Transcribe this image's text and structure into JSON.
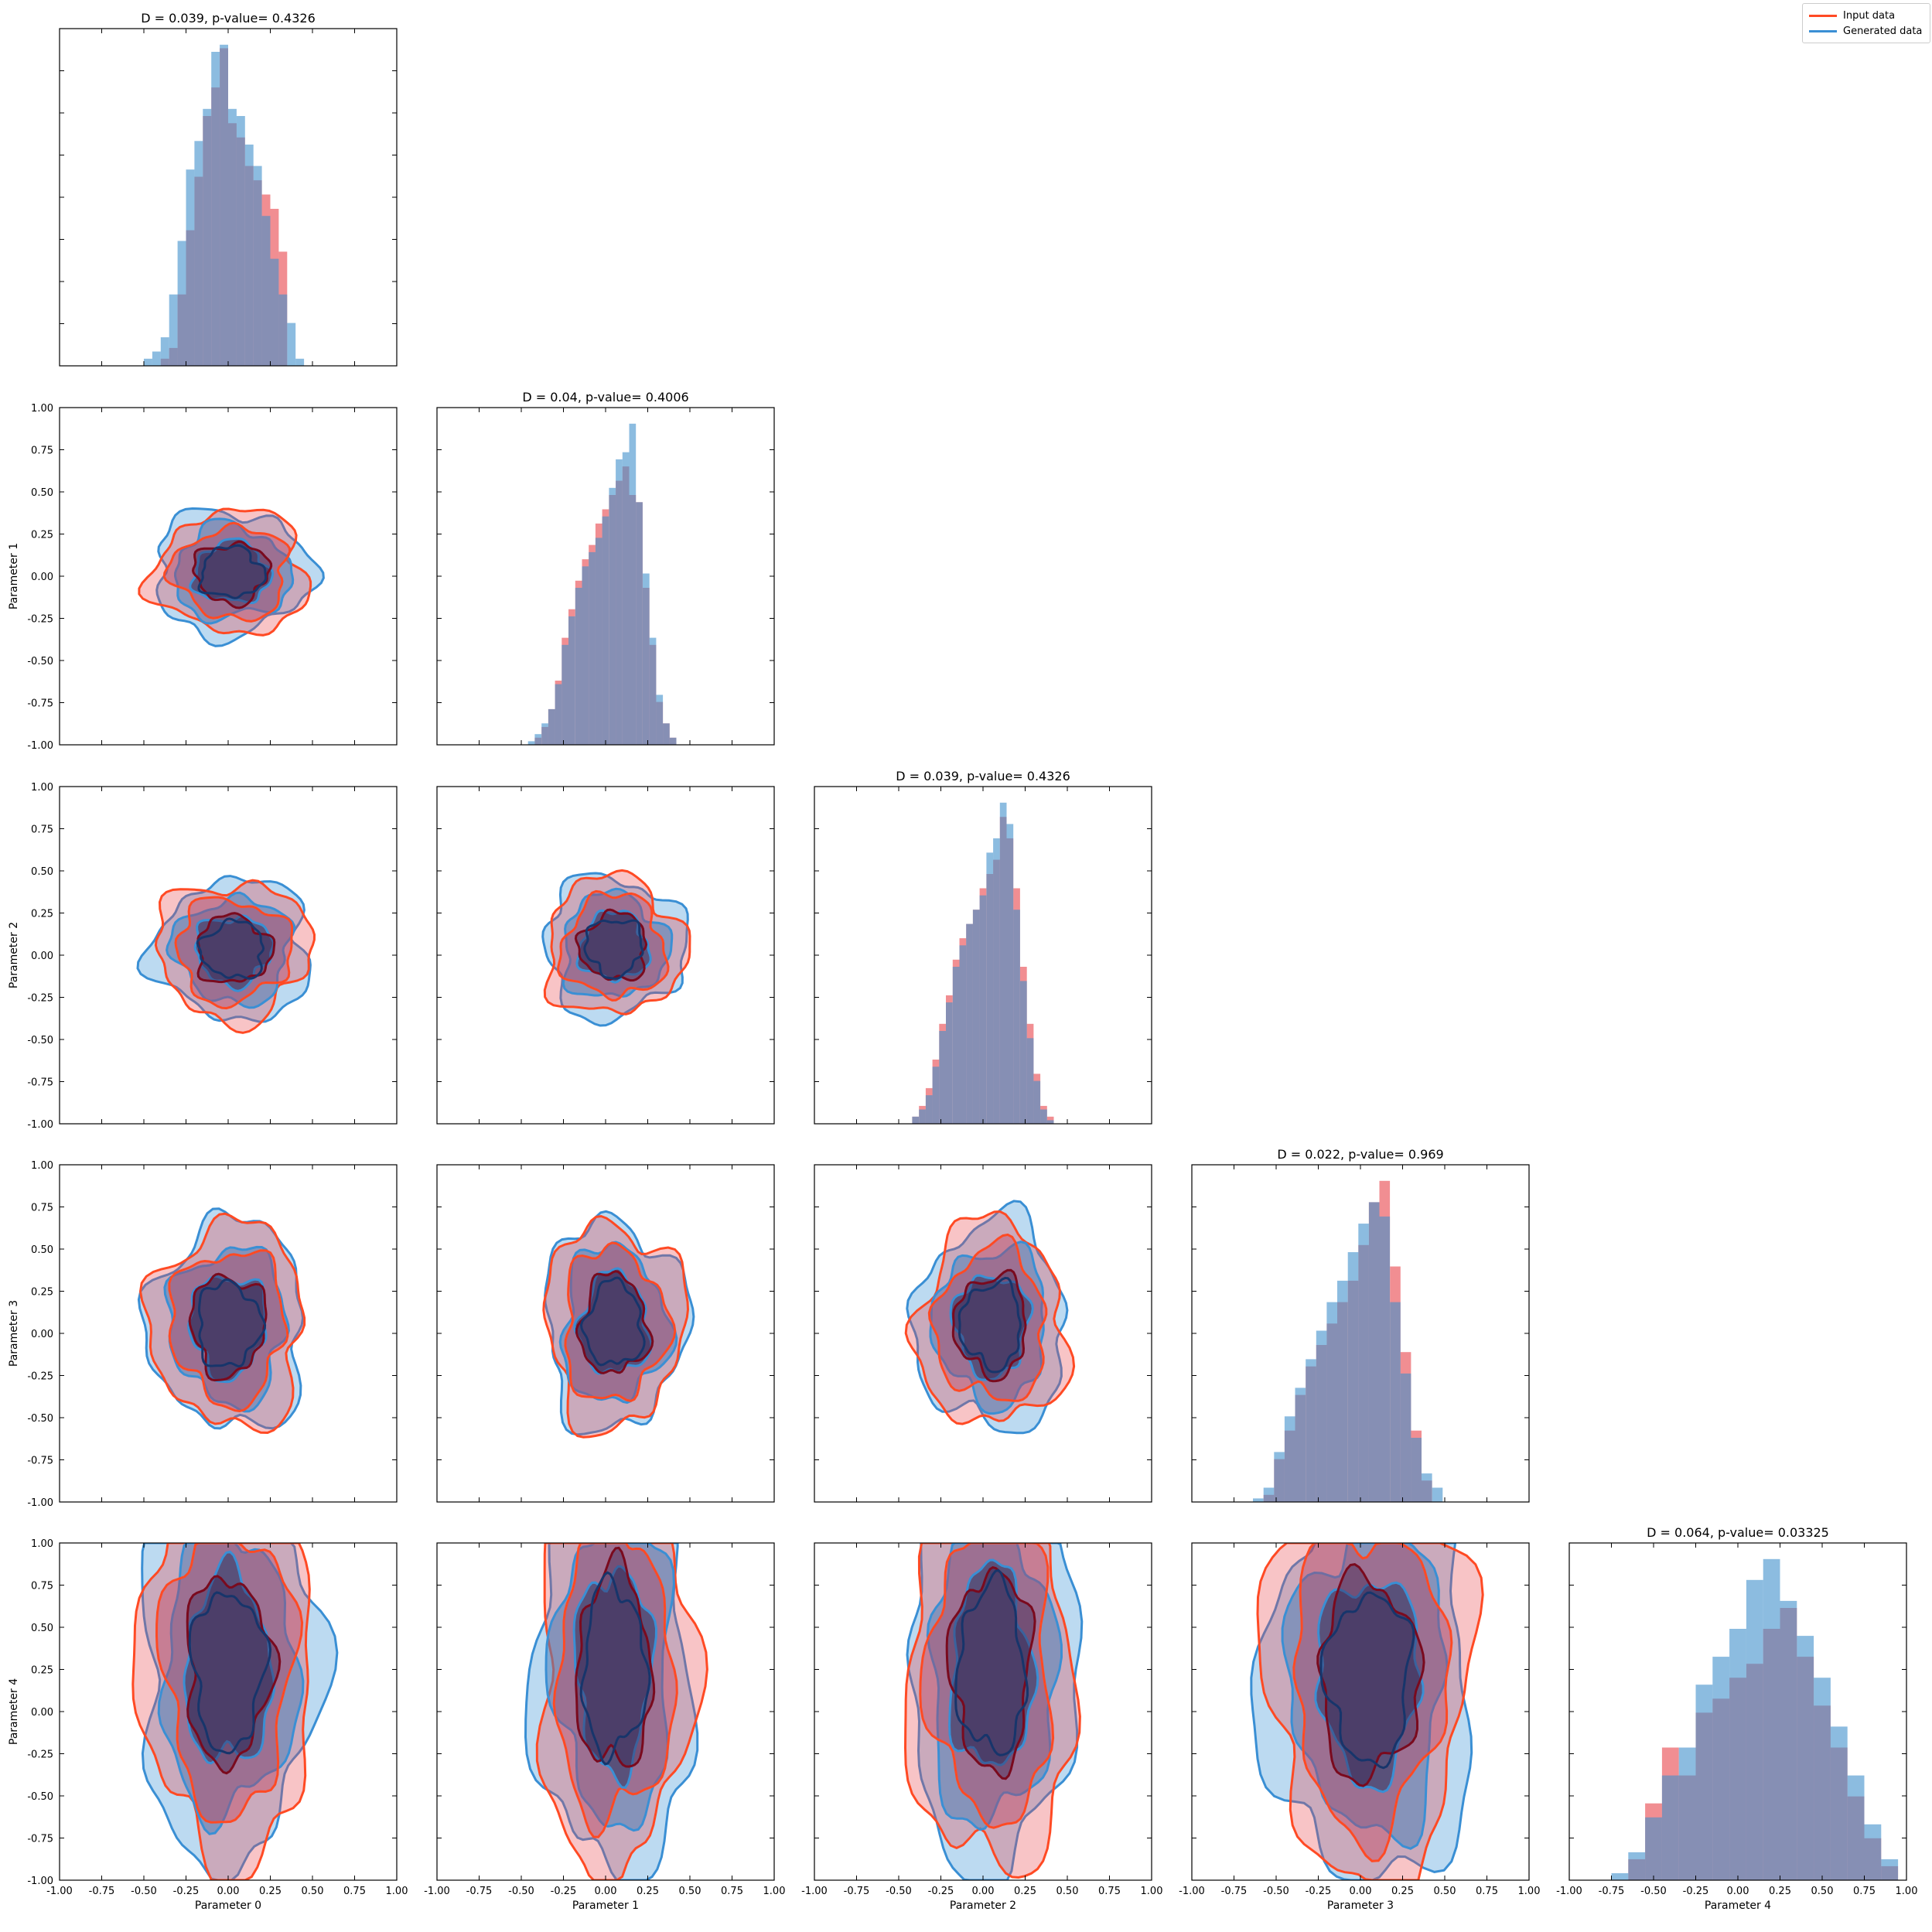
{
  "legend": {
    "input_label": "Input data",
    "generated_label": "Generated data",
    "placement": "top-right"
  },
  "colors": {
    "input": "#e8424a",
    "generated": "#3f8fcc",
    "input_line": "#ff4a24",
    "generated_line": "#3a8fd4",
    "inner_input": "#7a0a1e",
    "inner_generated": "#17356b",
    "overlap": "#7b6b92"
  },
  "chart_data": {
    "type": "corner",
    "parameters": [
      "Parameter 0",
      "Parameter 1",
      "Parameter 2",
      "Parameter 3",
      "Parameter 4"
    ],
    "axis_range": [
      -1.0,
      1.0
    ],
    "ticks": [
      "-1.00",
      "-0.75",
      "-0.50",
      "-0.25",
      "0.00",
      "0.25",
      "0.50",
      "0.75",
      "1.00"
    ],
    "diagonal_titles": [
      "D = 0.039, p-value= 0.4326",
      "D = 0.04, p-value= 0.4006",
      "D = 0.039, p-value= 0.4326",
      "D = 0.022, p-value= 0.969",
      "D = 0.064, p-value= 0.03325"
    ],
    "histograms": [
      {
        "x_start": -0.5,
        "bin_width": 0.05,
        "input": [
          0,
          0,
          2,
          5,
          20,
          38,
          53,
          70,
          78,
          89,
          68,
          64,
          56,
          52,
          48,
          44,
          32,
          0,
          0,
          0
        ],
        "generated": [
          2,
          4,
          8,
          20,
          35,
          55,
          63,
          72,
          88,
          90,
          72,
          70,
          62,
          56,
          42,
          30,
          20,
          12,
          2,
          0
        ]
      },
      {
        "x_start": -0.5,
        "bin_width": 0.04,
        "input": [
          0,
          0,
          2,
          5,
          10,
          18,
          30,
          38,
          46,
          52,
          56,
          62,
          66,
          70,
          74,
          78,
          70,
          68,
          44,
          28,
          12,
          6,
          2,
          0,
          0
        ],
        "generated": [
          0,
          1,
          3,
          6,
          10,
          17,
          28,
          36,
          44,
          50,
          54,
          58,
          64,
          72,
          80,
          82,
          90,
          68,
          48,
          30,
          14,
          6,
          2,
          0,
          0
        ]
      },
      {
        "x_start": -0.5,
        "bin_width": 0.04,
        "input": [
          0,
          0,
          2,
          5,
          10,
          18,
          28,
          36,
          46,
          52,
          56,
          60,
          66,
          70,
          74,
          86,
          80,
          66,
          44,
          28,
          14,
          5,
          2,
          0,
          0
        ],
        "generated": [
          0,
          0,
          2,
          4,
          8,
          16,
          26,
          34,
          44,
          50,
          56,
          60,
          64,
          76,
          80,
          90,
          84,
          60,
          40,
          24,
          12,
          4,
          1,
          0,
          0
        ]
      },
      {
        "x_start": -0.6,
        "bin_width": 0.05,
        "input": [
          0,
          0,
          2,
          12,
          20,
          30,
          38,
          44,
          50,
          56,
          62,
          72,
          84,
          90,
          66,
          42,
          20,
          6,
          0,
          0,
          0,
          0,
          0,
          0,
          0,
          0
        ],
        "generated": [
          0,
          1,
          4,
          14,
          24,
          32,
          40,
          48,
          56,
          62,
          70,
          78,
          84,
          80,
          56,
          36,
          18,
          8,
          4,
          0,
          0,
          0,
          0,
          0,
          0,
          0
        ],
        "x_rescale": [
          1.25,
          0.05
        ]
      },
      {
        "x_start": -0.75,
        "bin_width": 0.1,
        "input": [
          0,
          6,
          22,
          38,
          30,
          48,
          52,
          58,
          62,
          72,
          78,
          64,
          50,
          38,
          24,
          12,
          4,
          0
        ],
        "generated": [
          2,
          8,
          18,
          30,
          38,
          56,
          64,
          72,
          86,
          92,
          80,
          70,
          58,
          44,
          30,
          16,
          6,
          0
        ]
      }
    ],
    "pairs": [
      {
        "row": 1,
        "col": 0,
        "cx": 0.02,
        "cy": 0.02,
        "sx": 0.3,
        "sy": 0.24
      },
      {
        "row": 2,
        "col": 0,
        "cx": 0.03,
        "cy": 0.03,
        "sx": 0.3,
        "sy": 0.27
      },
      {
        "row": 2,
        "col": 1,
        "cx": 0.05,
        "cy": 0.05,
        "sx": 0.27,
        "sy": 0.27
      },
      {
        "row": 3,
        "col": 0,
        "cx": 0.0,
        "cy": 0.05,
        "sx": 0.3,
        "sy": 0.4
      },
      {
        "row": 3,
        "col": 1,
        "cx": 0.05,
        "cy": 0.05,
        "sx": 0.27,
        "sy": 0.4
      },
      {
        "row": 3,
        "col": 2,
        "cx": 0.05,
        "cy": 0.05,
        "sx": 0.29,
        "sy": 0.4
      },
      {
        "row": 4,
        "col": 0,
        "cx": 0.0,
        "cy": 0.25,
        "sx": 0.34,
        "sy": 0.75
      },
      {
        "row": 4,
        "col": 1,
        "cx": 0.05,
        "cy": 0.25,
        "sx": 0.3,
        "sy": 0.8
      },
      {
        "row": 4,
        "col": 2,
        "cx": 0.05,
        "cy": 0.25,
        "sx": 0.32,
        "sy": 0.8
      },
      {
        "row": 4,
        "col": 3,
        "cx": 0.05,
        "cy": 0.2,
        "sx": 0.4,
        "sy": 0.8
      }
    ],
    "grid": false
  }
}
